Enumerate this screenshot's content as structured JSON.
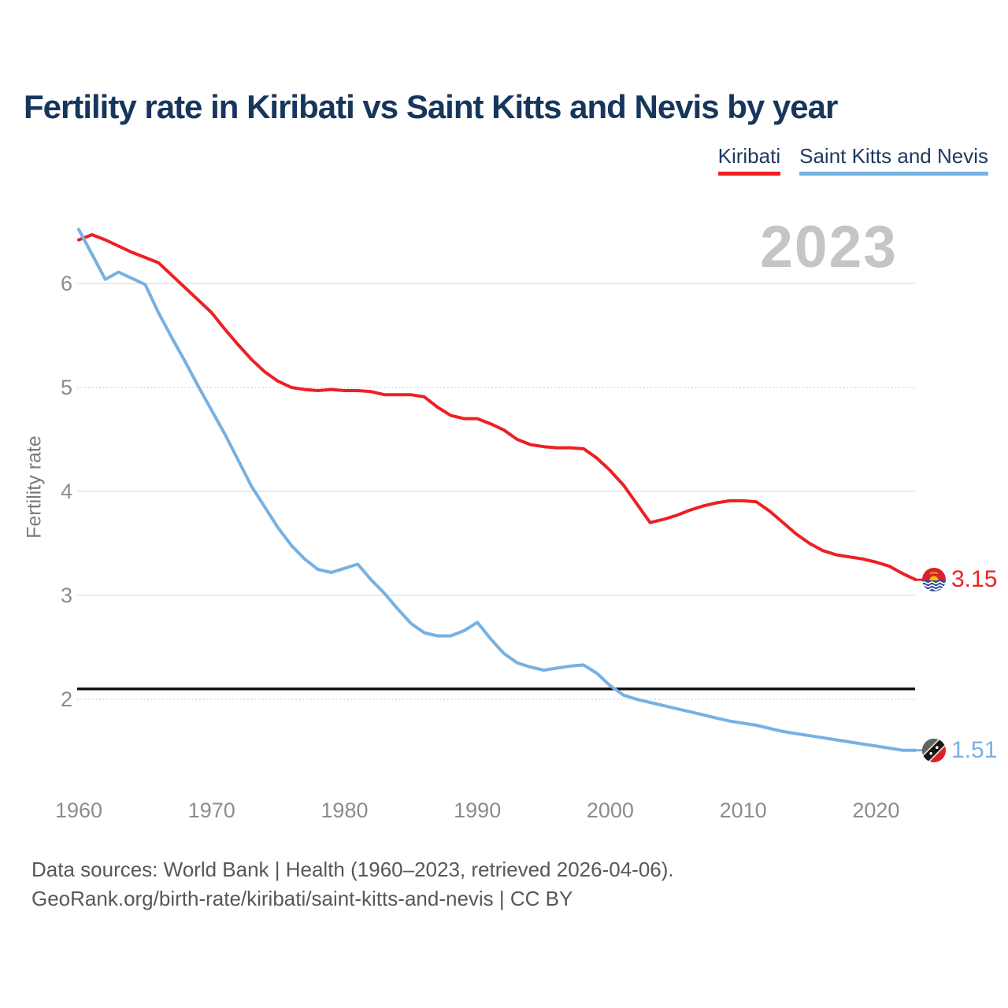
{
  "header": {
    "title": "Fertility rate in Kiribati vs Saint Kitts and Nevis by year"
  },
  "legend": [
    {
      "label": "Kiribati",
      "color": "#ed2024"
    },
    {
      "label": "Saint Kitts and Nevis",
      "color": "#76b1e3"
    }
  ],
  "watermark": "2023",
  "y_axis": {
    "title": "Fertility rate"
  },
  "reference_line": {
    "value": 2.1,
    "color": "#0b0b0b"
  },
  "end_labels": [
    {
      "series": "Kiribati",
      "value": "3.15",
      "flag": "kiribati-flag"
    },
    {
      "series": "Saint Kitts and Nevis",
      "value": "1.51",
      "flag": "saint-kitts-and-nevis-flag"
    }
  ],
  "footer": {
    "line1": "Data sources: World Bank | Health (1960–2023, retrieved 2026-04-06).",
    "line2": "GeoRank.org/birth-rate/kiribati/saint-kitts-and-nevis | CC BY"
  },
  "colors": {
    "title_text": "#17365d",
    "axis_text": "#8c8c8c",
    "footer_text": "#575757",
    "watermark": "#c5c5c5",
    "gridline_solid": "#eaeaea",
    "gridline_dotted": "#d7d7d7"
  },
  "chart_data": {
    "type": "line",
    "title": "Fertility rate in Kiribati vs Saint Kitts and Nevis by year",
    "xlabel": "",
    "ylabel": "Fertility rate",
    "grid": true,
    "legend_position": "top-right",
    "ylim": [
      1.35,
      6.6
    ],
    "xticks": [
      1960,
      1970,
      1980,
      1990,
      2000,
      2010,
      2020
    ],
    "yticks": [
      {
        "value": 6,
        "style": "solid"
      },
      {
        "value": 5,
        "style": "dotted"
      },
      {
        "value": 4,
        "style": "solid"
      },
      {
        "value": 3,
        "style": "solid"
      },
      {
        "value": 2,
        "style": "dotted"
      }
    ],
    "x": [
      1960,
      1961,
      1962,
      1963,
      1964,
      1965,
      1966,
      1967,
      1968,
      1969,
      1970,
      1971,
      1972,
      1973,
      1974,
      1975,
      1976,
      1977,
      1978,
      1979,
      1980,
      1981,
      1982,
      1983,
      1984,
      1985,
      1986,
      1987,
      1988,
      1989,
      1990,
      1991,
      1992,
      1993,
      1994,
      1995,
      1996,
      1997,
      1998,
      1999,
      2000,
      2001,
      2002,
      2003,
      2004,
      2005,
      2006,
      2007,
      2008,
      2009,
      2010,
      2011,
      2012,
      2013,
      2014,
      2015,
      2016,
      2017,
      2018,
      2019,
      2020,
      2021,
      2022,
      2023
    ],
    "series": [
      {
        "name": "Kiribati",
        "color": "#ed2024",
        "values": [
          6.42,
          6.47,
          6.42,
          6.36,
          6.3,
          6.25,
          6.2,
          6.08,
          5.96,
          5.84,
          5.72,
          5.56,
          5.41,
          5.27,
          5.15,
          5.06,
          5.0,
          4.98,
          4.97,
          4.98,
          4.97,
          4.97,
          4.96,
          4.93,
          4.93,
          4.93,
          4.91,
          4.81,
          4.73,
          4.7,
          4.7,
          4.65,
          4.59,
          4.5,
          4.45,
          4.43,
          4.42,
          4.42,
          4.41,
          4.32,
          4.2,
          4.06,
          3.88,
          3.7,
          3.73,
          3.77,
          3.82,
          3.86,
          3.89,
          3.91,
          3.91,
          3.9,
          3.81,
          3.7,
          3.59,
          3.5,
          3.43,
          3.39,
          3.37,
          3.35,
          3.32,
          3.28,
          3.21,
          3.15
        ]
      },
      {
        "name": "Saint Kitts and Nevis",
        "color": "#76b1e3",
        "values": [
          6.52,
          6.28,
          6.04,
          6.11,
          6.05,
          5.99,
          5.72,
          5.48,
          5.25,
          5.01,
          4.78,
          4.55,
          4.3,
          4.05,
          3.85,
          3.65,
          3.48,
          3.35,
          3.25,
          3.22,
          3.26,
          3.3,
          3.15,
          3.02,
          2.87,
          2.73,
          2.64,
          2.61,
          2.61,
          2.66,
          2.74,
          2.58,
          2.44,
          2.35,
          2.31,
          2.28,
          2.3,
          2.32,
          2.33,
          2.25,
          2.13,
          2.04,
          2.0,
          1.97,
          1.94,
          1.91,
          1.88,
          1.85,
          1.82,
          1.79,
          1.77,
          1.75,
          1.72,
          1.69,
          1.67,
          1.65,
          1.63,
          1.61,
          1.59,
          1.57,
          1.55,
          1.53,
          1.51,
          1.51
        ]
      }
    ]
  }
}
